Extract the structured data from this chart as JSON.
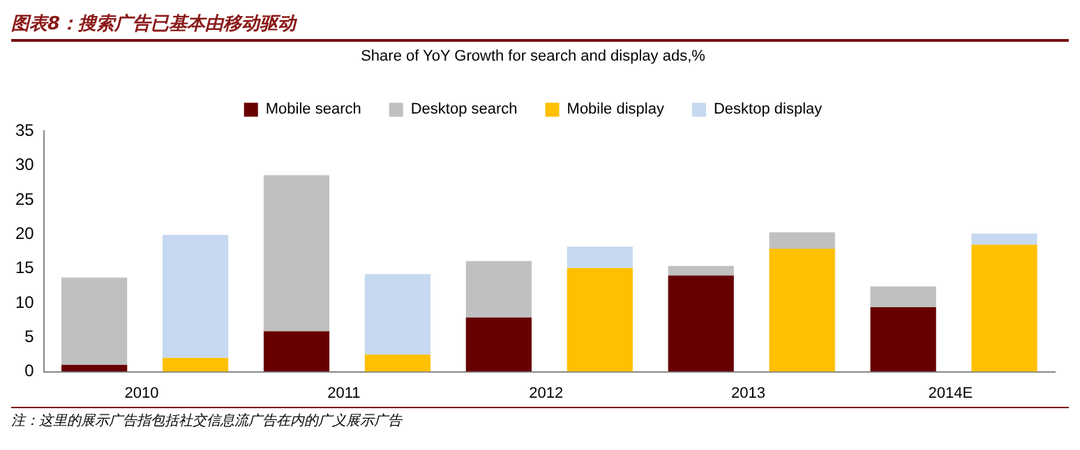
{
  "chart_data": {
    "type": "bar",
    "title": "图表8：搜索广告已基本由移动驱动",
    "subtitle": "Share of YoY Growth for search and display ads,%",
    "categories": [
      "2010",
      null,
      "2011",
      null,
      "2012",
      null,
      "2013",
      null,
      "2014E",
      null
    ],
    "stacked": true,
    "series": [
      {
        "name": "Mobile search",
        "color": "#660000",
        "values": [
          1.0,
          null,
          5.9,
          null,
          7.9,
          null,
          14.0,
          null,
          9.4,
          null
        ]
      },
      {
        "name": "Desktop search",
        "color": "#c0c0c0",
        "values": [
          12.7,
          null,
          22.7,
          null,
          8.2,
          null,
          1.4,
          null,
          3.0,
          null
        ]
      },
      {
        "name": "Mobile display",
        "color": "#ffc000",
        "values": [
          null,
          2.0,
          null,
          2.5,
          null,
          15.1,
          null,
          17.9,
          null,
          18.5
        ]
      },
      {
        "name": "Desktop display",
        "color": "#c6d9f0",
        "colors": [
          "#c6d9f0",
          "#c6d9f0",
          "#c6d9f0",
          "#c6d9f0",
          "#c6d9f0",
          "#c6d9f0",
          "#c6d9f0",
          "#c0c0c0",
          "#c6d9f0",
          "#c6d9f0"
        ],
        "values": [
          null,
          17.9,
          null,
          11.7,
          null,
          3.1,
          null,
          2.4,
          null,
          1.6
        ]
      }
    ],
    "ylim": [
      0,
      35
    ],
    "yticks": [
      0,
      5,
      10,
      15,
      20,
      25,
      30,
      35
    ],
    "grid": false,
    "legend": "top",
    "annotations": [
      "注：这里的展示广告指包括社交信息流广告在内的广义展示广告"
    ]
  }
}
